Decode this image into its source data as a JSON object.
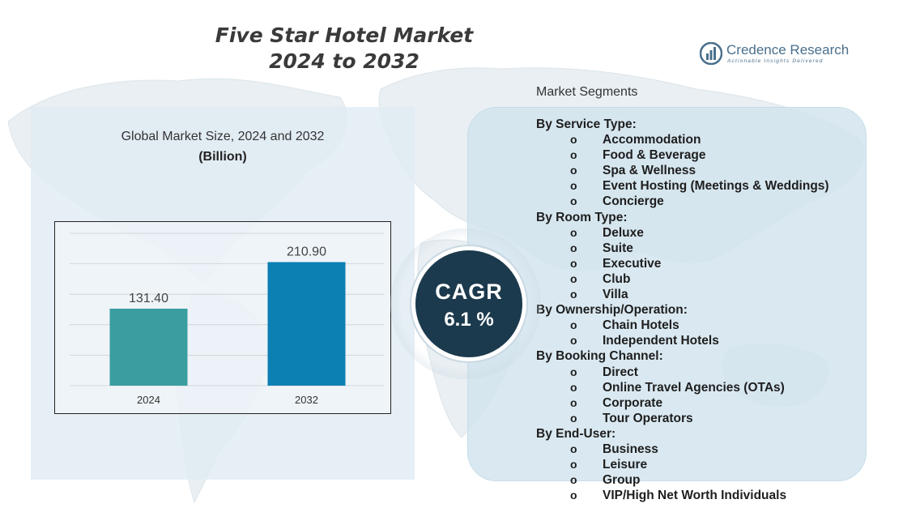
{
  "title_line1": "Five Star Hotel Market",
  "title_line2": "2024 to 2032",
  "logo": {
    "name": "Credence Research",
    "tagline": "Actionable Insights Delivered"
  },
  "left_panel": {
    "heading": "Global Market Size, 2024 and 2032",
    "unit": "(Billion)"
  },
  "chart_data": {
    "type": "bar",
    "categories": [
      "2024",
      "2032"
    ],
    "values": [
      131.4,
      210.9
    ],
    "value_labels": [
      "131.40",
      "210.90"
    ],
    "colors": [
      "#3a9ea0",
      "#0c7fb3"
    ],
    "title": "Global Market Size, 2024 and 2032",
    "ylabel": "(Billion)",
    "ylim": [
      0,
      260
    ],
    "grid": true
  },
  "cagr": {
    "label": "CAGR",
    "value": "6.1 %"
  },
  "segments_label": "Market Segments",
  "segments": [
    {
      "heading": "By Service Type:",
      "items": [
        "Accommodation",
        "Food & Beverage",
        "Spa & Wellness",
        "Event Hosting (Meetings & Weddings)",
        "Concierge"
      ]
    },
    {
      "heading": "By Room Type:",
      "items": [
        "Deluxe",
        "Suite",
        "Executive",
        "Club",
        "Villa"
      ]
    },
    {
      "heading": "By Ownership/Operation:",
      "items": [
        "Chain Hotels",
        "Independent Hotels"
      ]
    },
    {
      "heading": "By Booking Channel:",
      "items": [
        "Direct",
        "Online Travel Agencies (OTAs)",
        "Corporate",
        "Tour Operators"
      ]
    },
    {
      "heading": "By End-User:",
      "items": [
        "Business",
        "Leisure",
        "Group",
        "VIP/High Net Worth Individuals"
      ]
    }
  ],
  "bullet_char": "o"
}
